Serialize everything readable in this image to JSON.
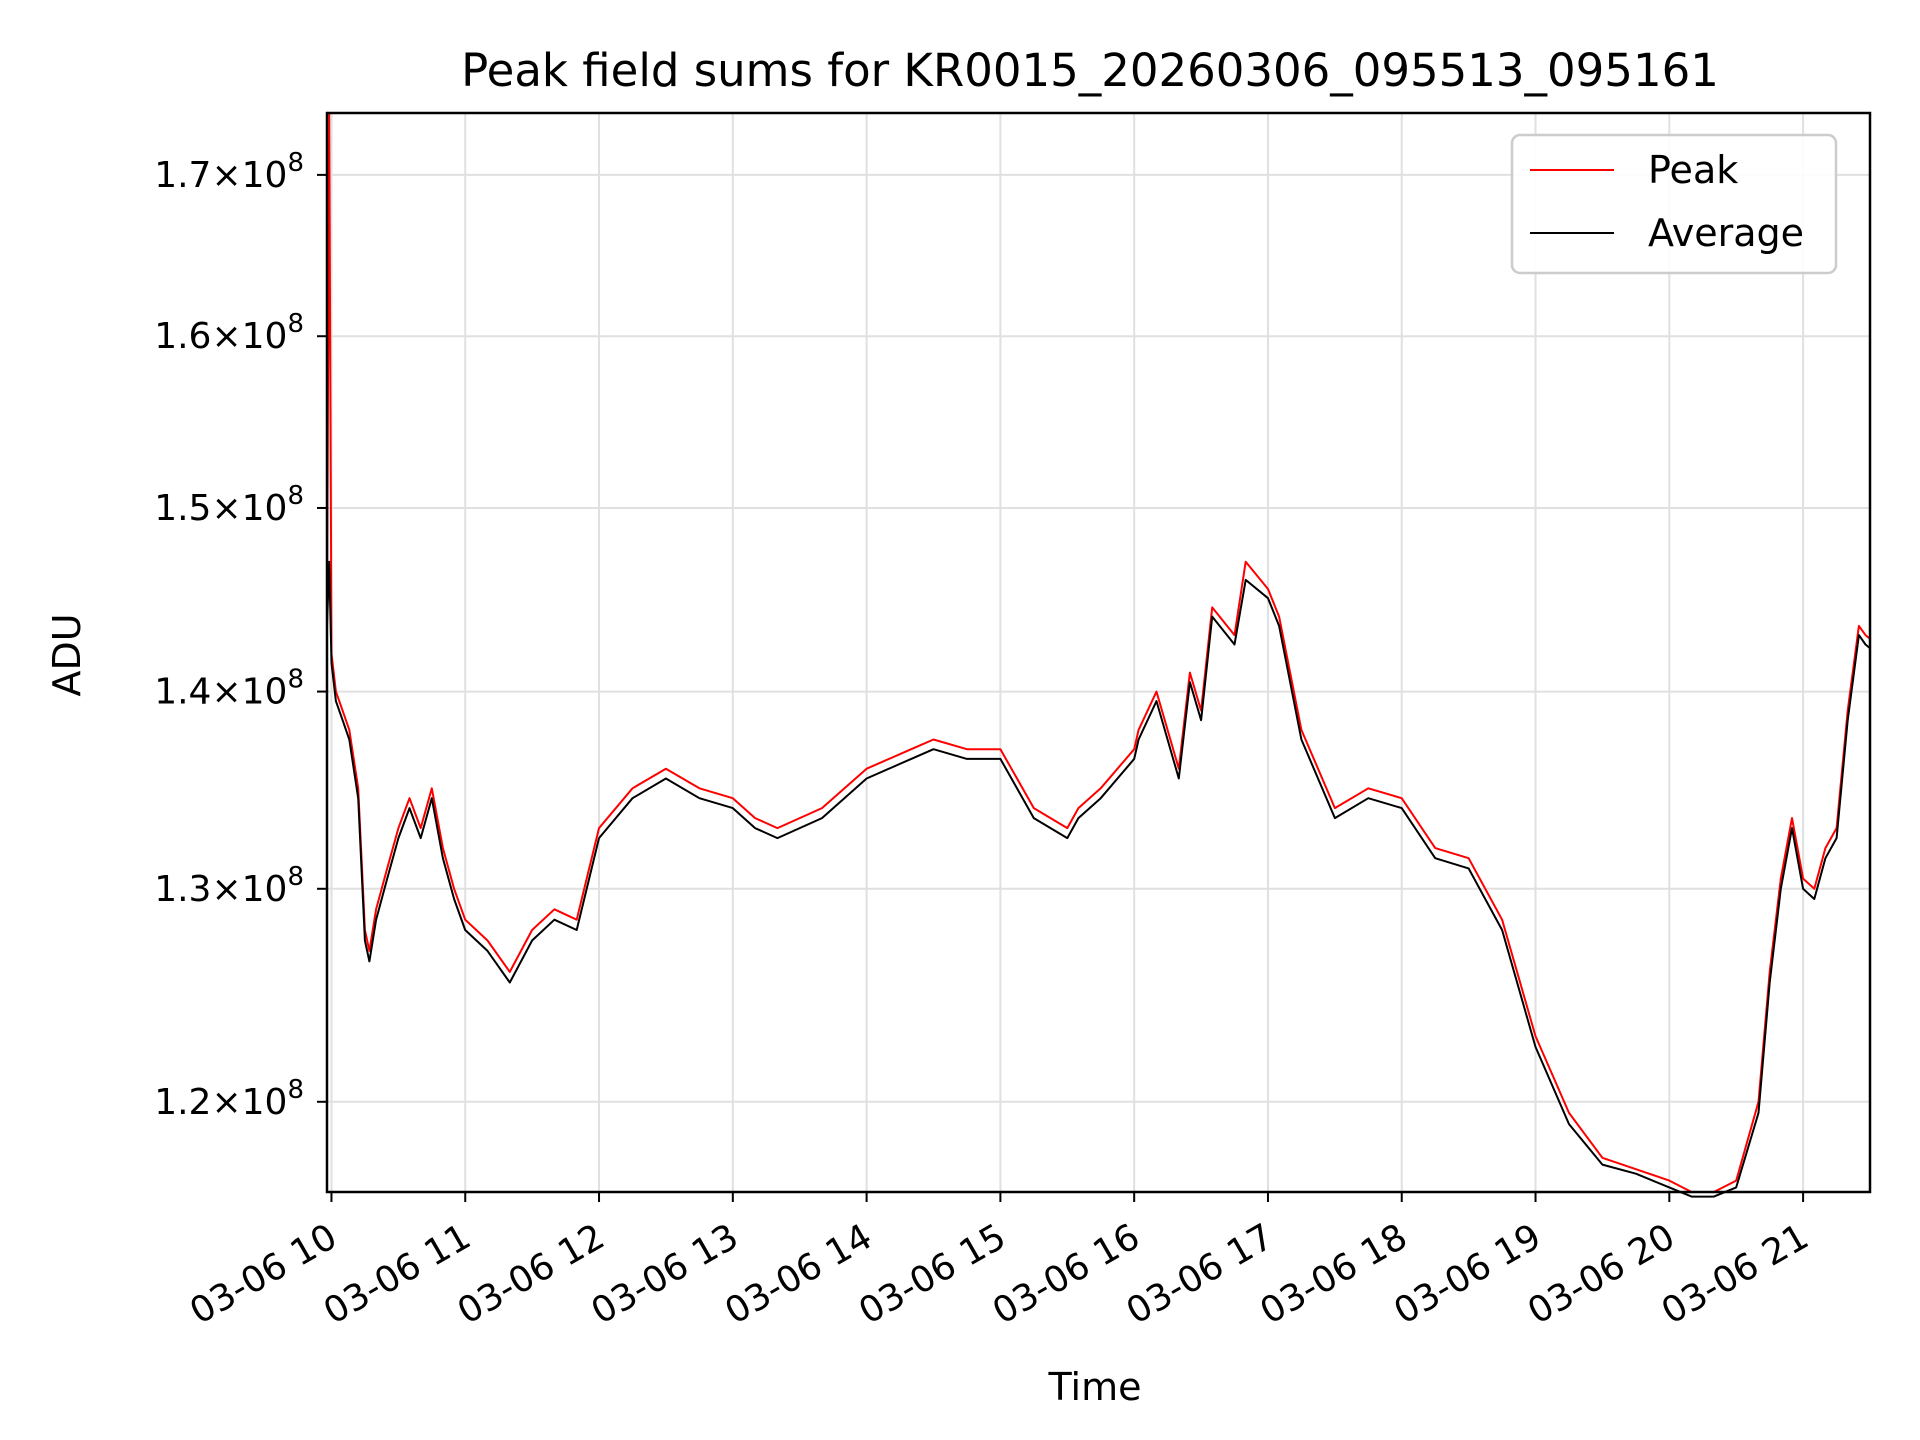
{
  "chart_data": {
    "type": "line",
    "title": "Peak field sums for KR0015_20260306_095513_095161",
    "xlabel": "Time",
    "ylabel": "ADU",
    "y_scale": "log",
    "xlim": [
      "2026-03-06 09:58",
      "2026-03-06 21:30"
    ],
    "ylim": [
      116000000,
      174000000
    ],
    "grid": true,
    "legend_placement": "top-right",
    "colors": {
      "peak": "#ff0000",
      "average": "#000000",
      "grid": "#e0e0e0"
    },
    "x_ticks": [
      {
        "value": "2026-03-06 10:00",
        "label": "03-06 10"
      },
      {
        "value": "2026-03-06 11:00",
        "label": "03-06 11"
      },
      {
        "value": "2026-03-06 12:00",
        "label": "03-06 12"
      },
      {
        "value": "2026-03-06 13:00",
        "label": "03-06 13"
      },
      {
        "value": "2026-03-06 14:00",
        "label": "03-06 14"
      },
      {
        "value": "2026-03-06 15:00",
        "label": "03-06 15"
      },
      {
        "value": "2026-03-06 16:00",
        "label": "03-06 16"
      },
      {
        "value": "2026-03-06 17:00",
        "label": "03-06 17"
      },
      {
        "value": "2026-03-06 18:00",
        "label": "03-06 18"
      },
      {
        "value": "2026-03-06 19:00",
        "label": "03-06 19"
      },
      {
        "value": "2026-03-06 20:00",
        "label": "03-06 20"
      },
      {
        "value": "2026-03-06 21:00",
        "label": "03-06 21"
      }
    ],
    "y_ticks": [
      {
        "value": 120000000,
        "mantissa": "1.2",
        "base": "×10",
        "exponent": "8"
      },
      {
        "value": 130000000,
        "mantissa": "1.3",
        "base": "×10",
        "exponent": "8"
      },
      {
        "value": 140000000,
        "mantissa": "1.4",
        "base": "×10",
        "exponent": "8"
      },
      {
        "value": 150000000,
        "mantissa": "1.5",
        "base": "×10",
        "exponent": "8"
      },
      {
        "value": 160000000,
        "mantissa": "1.6",
        "base": "×10",
        "exponent": "8"
      },
      {
        "value": 170000000,
        "mantissa": "1.7",
        "base": "×10",
        "exponent": "8"
      }
    ],
    "series": [
      {
        "name": "Peak",
        "color": "#ff0000",
        "x": [
          "2026-03-06 09:58",
          "2026-03-06 09:59",
          "2026-03-06 10:00",
          "2026-03-06 10:02",
          "2026-03-06 10:05",
          "2026-03-06 10:08",
          "2026-03-06 10:12",
          "2026-03-06 10:15",
          "2026-03-06 10:17",
          "2026-03-06 10:20",
          "2026-03-06 10:25",
          "2026-03-06 10:30",
          "2026-03-06 10:35",
          "2026-03-06 10:40",
          "2026-03-06 10:45",
          "2026-03-06 10:50",
          "2026-03-06 10:55",
          "2026-03-06 11:00",
          "2026-03-06 11:10",
          "2026-03-06 11:20",
          "2026-03-06 11:30",
          "2026-03-06 11:40",
          "2026-03-06 11:50",
          "2026-03-06 12:00",
          "2026-03-06 12:15",
          "2026-03-06 12:30",
          "2026-03-06 12:45",
          "2026-03-06 13:00",
          "2026-03-06 13:10",
          "2026-03-06 13:20",
          "2026-03-06 13:40",
          "2026-03-06 14:00",
          "2026-03-06 14:20",
          "2026-03-06 14:30",
          "2026-03-06 14:45",
          "2026-03-06 15:00",
          "2026-03-06 15:15",
          "2026-03-06 15:30",
          "2026-03-06 15:35",
          "2026-03-06 15:45",
          "2026-03-06 16:00",
          "2026-03-06 16:02",
          "2026-03-06 16:10",
          "2026-03-06 16:20",
          "2026-03-06 16:25",
          "2026-03-06 16:30",
          "2026-03-06 16:35",
          "2026-03-06 16:45",
          "2026-03-06 16:50",
          "2026-03-06 17:00",
          "2026-03-06 17:05",
          "2026-03-06 17:15",
          "2026-03-06 17:30",
          "2026-03-06 17:45",
          "2026-03-06 18:00",
          "2026-03-06 18:15",
          "2026-03-06 18:30",
          "2026-03-06 18:45",
          "2026-03-06 19:00",
          "2026-03-06 19:15",
          "2026-03-06 19:30",
          "2026-03-06 19:45",
          "2026-03-06 20:00",
          "2026-03-06 20:10",
          "2026-03-06 20:20",
          "2026-03-06 20:30",
          "2026-03-06 20:40",
          "2026-03-06 20:45",
          "2026-03-06 20:50",
          "2026-03-06 20:55",
          "2026-03-06 21:00",
          "2026-03-06 21:05",
          "2026-03-06 21:10",
          "2026-03-06 21:15",
          "2026-03-06 21:20",
          "2026-03-06 21:25",
          "2026-03-06 21:28",
          "2026-03-06 21:30"
        ],
        "values": [
          144000000,
          174000000,
          142000000,
          140000000,
          139000000,
          138000000,
          135000000,
          128000000,
          127000000,
          129000000,
          131000000,
          133000000,
          134500000,
          133000000,
          135000000,
          132000000,
          130000000,
          128500000,
          127500000,
          126000000,
          128000000,
          129000000,
          128500000,
          133000000,
          135000000,
          136000000,
          135000000,
          134500000,
          133500000,
          133000000,
          134000000,
          136000000,
          137000000,
          137500000,
          137000000,
          137000000,
          134000000,
          133000000,
          134000000,
          135000000,
          137000000,
          138000000,
          140000000,
          136000000,
          141000000,
          139000000,
          144500000,
          143000000,
          147000000,
          145500000,
          144000000,
          138000000,
          134000000,
          135000000,
          134500000,
          132000000,
          131500000,
          128500000,
          123000000,
          119500000,
          117500000,
          117000000,
          116500000,
          116000000,
          116000000,
          116500000,
          120000000,
          126000000,
          130500000,
          133500000,
          130500000,
          130000000,
          132000000,
          133000000,
          139000000,
          143500000,
          143000000,
          142800000
        ]
      },
      {
        "name": "Average",
        "color": "#000000",
        "x": [
          "2026-03-06 09:58",
          "2026-03-06 09:59",
          "2026-03-06 10:00",
          "2026-03-06 10:02",
          "2026-03-06 10:05",
          "2026-03-06 10:08",
          "2026-03-06 10:12",
          "2026-03-06 10:15",
          "2026-03-06 10:17",
          "2026-03-06 10:20",
          "2026-03-06 10:25",
          "2026-03-06 10:30",
          "2026-03-06 10:35",
          "2026-03-06 10:40",
          "2026-03-06 10:45",
          "2026-03-06 10:50",
          "2026-03-06 10:55",
          "2026-03-06 11:00",
          "2026-03-06 11:10",
          "2026-03-06 11:20",
          "2026-03-06 11:30",
          "2026-03-06 11:40",
          "2026-03-06 11:50",
          "2026-03-06 12:00",
          "2026-03-06 12:15",
          "2026-03-06 12:30",
          "2026-03-06 12:45",
          "2026-03-06 13:00",
          "2026-03-06 13:10",
          "2026-03-06 13:20",
          "2026-03-06 13:40",
          "2026-03-06 14:00",
          "2026-03-06 14:20",
          "2026-03-06 14:30",
          "2026-03-06 14:45",
          "2026-03-06 15:00",
          "2026-03-06 15:15",
          "2026-03-06 15:30",
          "2026-03-06 15:35",
          "2026-03-06 15:45",
          "2026-03-06 16:00",
          "2026-03-06 16:02",
          "2026-03-06 16:10",
          "2026-03-06 16:20",
          "2026-03-06 16:25",
          "2026-03-06 16:30",
          "2026-03-06 16:35",
          "2026-03-06 16:45",
          "2026-03-06 16:50",
          "2026-03-06 17:00",
          "2026-03-06 17:05",
          "2026-03-06 17:15",
          "2026-03-06 17:30",
          "2026-03-06 17:45",
          "2026-03-06 18:00",
          "2026-03-06 18:15",
          "2026-03-06 18:30",
          "2026-03-06 18:45",
          "2026-03-06 19:00",
          "2026-03-06 19:15",
          "2026-03-06 19:30",
          "2026-03-06 19:45",
          "2026-03-06 20:00",
          "2026-03-06 20:10",
          "2026-03-06 20:20",
          "2026-03-06 20:30",
          "2026-03-06 20:40",
          "2026-03-06 20:45",
          "2026-03-06 20:50",
          "2026-03-06 20:55",
          "2026-03-06 21:00",
          "2026-03-06 21:05",
          "2026-03-06 21:10",
          "2026-03-06 21:15",
          "2026-03-06 21:20",
          "2026-03-06 21:25",
          "2026-03-06 21:28",
          "2026-03-06 21:30"
        ],
        "values": [
          143500000,
          147000000,
          141500000,
          139500000,
          138500000,
          137500000,
          134500000,
          127500000,
          126500000,
          128500000,
          130500000,
          132500000,
          134000000,
          132500000,
          134500000,
          131500000,
          129500000,
          128000000,
          127000000,
          125500000,
          127500000,
          128500000,
          128000000,
          132500000,
          134500000,
          135500000,
          134500000,
          134000000,
          133000000,
          132500000,
          133500000,
          135500000,
          136500000,
          137000000,
          136500000,
          136500000,
          133500000,
          132500000,
          133500000,
          134500000,
          136500000,
          137500000,
          139500000,
          135500000,
          140500000,
          138500000,
          144000000,
          142500000,
          146000000,
          145000000,
          143500000,
          137500000,
          133500000,
          134500000,
          134000000,
          131500000,
          131000000,
          128000000,
          122500000,
          119000000,
          117200000,
          116800000,
          116200000,
          115800000,
          115800000,
          116200000,
          119500000,
          125500000,
          130000000,
          133000000,
          130000000,
          129500000,
          131500000,
          132500000,
          138500000,
          143000000,
          142500000,
          142300000
        ]
      }
    ]
  }
}
